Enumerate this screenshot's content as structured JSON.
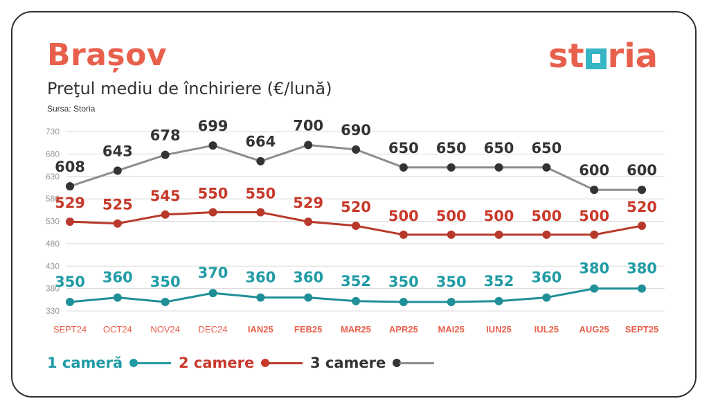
{
  "header": {
    "city": "Brașov",
    "subtitle": "Preţul mediu de închiriere (€/lună)",
    "source": "Sursa: Storia"
  },
  "logo": {
    "part1": "st",
    "part2": "ria"
  },
  "colors": {
    "accent": "#e8604c",
    "teal": "#1f8f98",
    "red": "#b8392b",
    "gray": "#8c8c8c",
    "dark": "#333333"
  },
  "legend": [
    {
      "label": "1 cameră",
      "color": "#1f9ba5"
    },
    {
      "label": "2 camere",
      "color": "#c8392b"
    },
    {
      "label": "3 camere",
      "color": "#333333"
    }
  ],
  "chart_data": {
    "type": "line",
    "categories": [
      "SEPT24",
      "OCT24",
      "NOV24",
      "DEC24",
      "IAN25",
      "FEB25",
      "MAR25",
      "APR25",
      "MAI25",
      "IUN25",
      "IUL25",
      "AUG25",
      "SEPT25"
    ],
    "yticks": [
      730,
      680,
      630,
      580,
      530,
      480,
      430,
      380,
      330
    ],
    "ylim": [
      330,
      730
    ],
    "grid": true,
    "series": [
      {
        "name": "1 cameră",
        "values": [
          350,
          360,
          350,
          370,
          360,
          360,
          352,
          350,
          350,
          352,
          360,
          380,
          380
        ]
      },
      {
        "name": "2 camere",
        "values": [
          529,
          525,
          545,
          550,
          550,
          529,
          520,
          500,
          500,
          500,
          500,
          500,
          520
        ]
      },
      {
        "name": "3 camere",
        "values": [
          608,
          643,
          678,
          699,
          664,
          700,
          690,
          650,
          650,
          650,
          650,
          600,
          600
        ]
      }
    ]
  }
}
